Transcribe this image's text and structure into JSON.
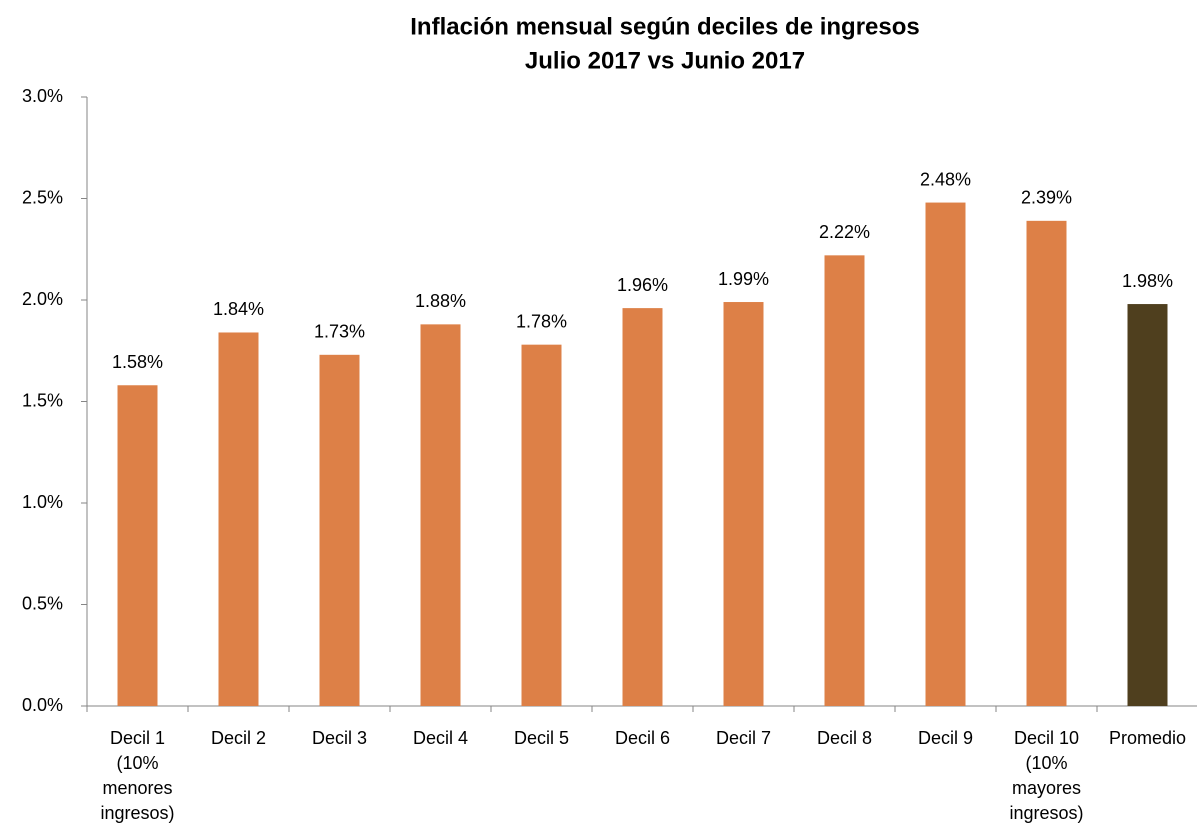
{
  "chart_data": {
    "type": "bar",
    "title": "Inflación mensual según deciles de ingresos",
    "subtitle": "Julio 2017 vs Junio 2017",
    "categories": [
      "Decil 1 (10% menores ingresos)",
      "Decil 2",
      "Decil 3",
      "Decil 4",
      "Decil 5",
      "Decil 6",
      "Decil 7",
      "Decil 8",
      "Decil 9",
      "Decil 10 (10% mayores ingresos)",
      "Promedio"
    ],
    "values": [
      1.58,
      1.84,
      1.73,
      1.88,
      1.78,
      1.96,
      1.99,
      2.22,
      2.48,
      2.39,
      1.98
    ],
    "value_labels": [
      "1.58%",
      "1.84%",
      "1.73%",
      "1.88%",
      "1.78%",
      "1.96%",
      "1.99%",
      "2.22%",
      "2.48%",
      "2.39%",
      "1.98%"
    ],
    "colors": [
      "#dd8047",
      "#dd8047",
      "#dd8047",
      "#dd8047",
      "#dd8047",
      "#dd8047",
      "#dd8047",
      "#dd8047",
      "#dd8047",
      "#dd8047",
      "#4f3f1e"
    ],
    "ylim": [
      0,
      3
    ],
    "yticks": [
      {
        "value": 0,
        "label": "0.0%"
      },
      {
        "value": 0.5,
        "label": "0.5%"
      },
      {
        "value": 1,
        "label": "1.0%"
      },
      {
        "value": 1.5,
        "label": "1.5%"
      },
      {
        "value": 2,
        "label": "2.0%"
      },
      {
        "value": 2.5,
        "label": "2.5%"
      },
      {
        "value": 3,
        "label": "3.0%"
      }
    ],
    "grid": false
  }
}
